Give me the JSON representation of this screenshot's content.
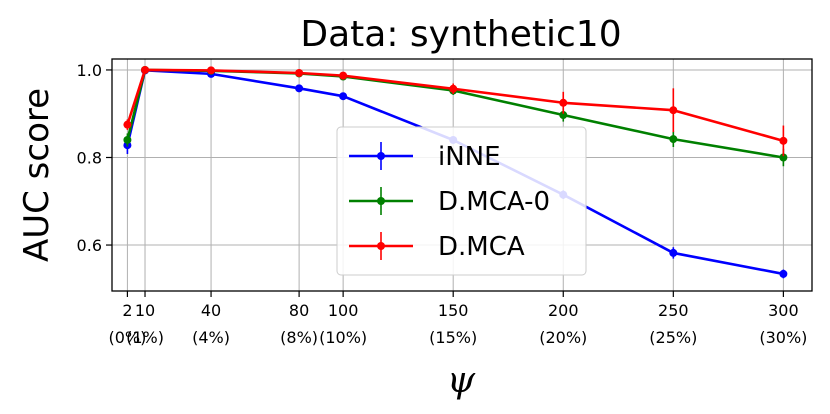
{
  "chart_data": {
    "type": "line",
    "title": "Data: synthetic10",
    "xlabel": "ψ",
    "ylabel": "AUC score",
    "x": [
      2,
      10,
      40,
      80,
      100,
      150,
      200,
      250,
      300
    ],
    "xlim": [
      -5,
      313
    ],
    "ylim": [
      0.495,
      1.025
    ],
    "xticks": [
      {
        "value": 2,
        "line1": "2",
        "line2": "(0%)"
      },
      {
        "value": 10,
        "line1": "10",
        "line2": "(1%)"
      },
      {
        "value": 40,
        "line1": "40",
        "line2": "(4%)"
      },
      {
        "value": 80,
        "line1": "80",
        "line2": "(8%)"
      },
      {
        "value": 100,
        "line1": "100",
        "line2": "(10%)"
      },
      {
        "value": 150,
        "line1": "150",
        "line2": "(15%)"
      },
      {
        "value": 200,
        "line1": "200",
        "line2": "(20%)"
      },
      {
        "value": 250,
        "line1": "250",
        "line2": "(25%)"
      },
      {
        "value": 300,
        "line1": "300",
        "line2": "(30%)"
      }
    ],
    "yticks": [
      {
        "value": 0.6,
        "label": "0.6"
      },
      {
        "value": 0.8,
        "label": "0.8"
      },
      {
        "value": 1.0,
        "label": "1.0"
      }
    ],
    "grid": true,
    "legend_position": "center",
    "series": [
      {
        "name": "iNNE",
        "color": "#0000ff",
        "values": [
          0.828,
          0.999,
          0.991,
          0.958,
          0.94,
          0.84,
          0.715,
          0.582,
          0.534
        ],
        "errors": [
          0.02,
          0.002,
          0.004,
          0.004,
          0.005,
          0.008,
          0.01,
          0.013,
          0.01
        ]
      },
      {
        "name": "D.MCA-0",
        "color": "#008000",
        "values": [
          0.84,
          1.0,
          0.998,
          0.992,
          0.985,
          0.953,
          0.897,
          0.842,
          0.8
        ],
        "errors": [
          0.015,
          0.001,
          0.002,
          0.003,
          0.005,
          0.01,
          0.015,
          0.018,
          0.02
        ]
      },
      {
        "name": "D.MCA",
        "color": "#ff0000",
        "values": [
          0.875,
          1.0,
          0.999,
          0.993,
          0.987,
          0.957,
          0.925,
          0.908,
          0.838
        ],
        "errors": [
          0.012,
          0.001,
          0.002,
          0.004,
          0.006,
          0.012,
          0.025,
          0.05,
          0.035
        ]
      }
    ]
  }
}
